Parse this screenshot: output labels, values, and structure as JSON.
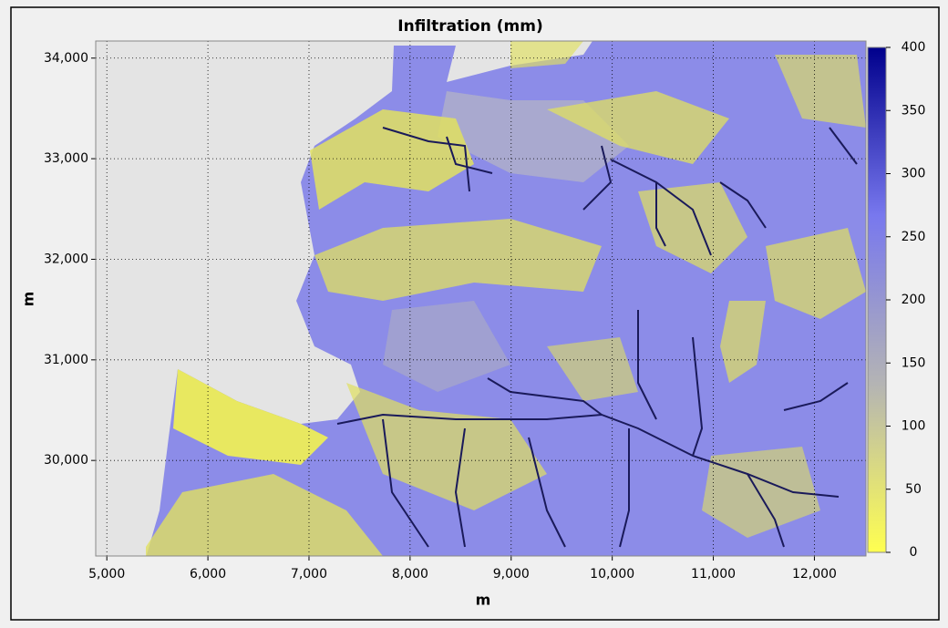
{
  "chart_data": {
    "type": "heatmap",
    "title": "Infiltration (mm)",
    "x_label": "m",
    "y_label": "m",
    "xlim": [
      4890,
      12510
    ],
    "xticks": [
      {
        "value": 5000,
        "label": "5,000"
      },
      {
        "value": 6000,
        "label": "6,000"
      },
      {
        "value": 7000,
        "label": "7,000"
      },
      {
        "value": 8000,
        "label": "8,000"
      },
      {
        "value": 9000,
        "label": "9,000"
      },
      {
        "value": 10000,
        "label": "10,000"
      },
      {
        "value": 11000,
        "label": "11,000"
      },
      {
        "value": 12000,
        "label": "12,000"
      }
    ],
    "ylim": [
      29050,
      34170
    ],
    "yticks": [
      {
        "value": 30000,
        "label": "30,000"
      },
      {
        "value": 31000,
        "label": "31,000"
      },
      {
        "value": 32000,
        "label": "32,000"
      },
      {
        "value": 33000,
        "label": "33,000"
      },
      {
        "value": 34000,
        "label": "34,000"
      }
    ],
    "grid": true,
    "colorbar": {
      "lim": [
        0,
        400
      ],
      "ticks": [
        0,
        50,
        100,
        150,
        200,
        250,
        300,
        350,
        400
      ],
      "colors": [
        "#ffff50",
        "#b4b4b4",
        "#7878ee",
        "#00008c"
      ]
    }
  }
}
